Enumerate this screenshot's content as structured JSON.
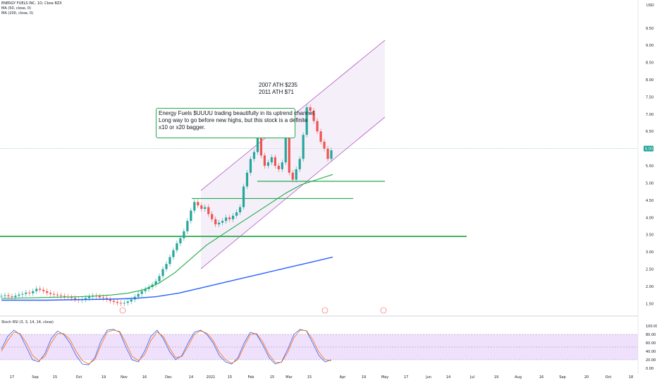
{
  "header": {
    "symbol_line": "ENERGY FUELS INC, 1D, Cboe BZX",
    "indicator_1": "MA (50, close, 0)",
    "indicator_2": "MA (200, close, 0)",
    "currency": "USD",
    "last_price_label": "6.00"
  },
  "annotations": {
    "ath_2007": "2007 ATH $235",
    "ath_2011": "2011 ATH $71",
    "note_line1": "Energy Fuels $UUUU trading beautifully in its uptrend channel.",
    "note_line2": "Long way to go before new highs, but this stock is a definite",
    "note_line3": "x10 or x20 bagger."
  },
  "oscillator": {
    "title": "Stoch RSI (3, 3, 14, 14, close)",
    "axis_ticks": [
      "100.00",
      "80.00",
      "60.00",
      "40.00",
      "20.00",
      "0.00"
    ]
  },
  "colors": {
    "up": "#26a69a",
    "down": "#ef5350",
    "ma50": "#22ab4a",
    "ma200": "#2962ff",
    "channel": "#9c27b0",
    "hline": "#22ab4a"
  },
  "chart_data": {
    "type": "candlestick",
    "title": "ENERGY FUELS INC, 1D, Cboe BZX",
    "y_ticks": [
      "9.50",
      "9.00",
      "8.50",
      "8.00",
      "7.50",
      "7.00",
      "6.50",
      "6.00",
      "5.50",
      "5.00",
      "4.50",
      "4.00",
      "3.50",
      "3.00",
      "2.50",
      "2.00",
      "1.50"
    ],
    "x_ticks": [
      "17",
      "Sep",
      "15",
      "Oct",
      "19",
      "Nov",
      "16",
      "Dec",
      "14",
      "2021",
      "15",
      "Feb",
      "15",
      "Mar",
      "15",
      "Apr",
      "19",
      "May",
      "17",
      "Jun",
      "14",
      "Jul",
      "19",
      "Aug",
      "16",
      "Sep",
      "20",
      "Oct",
      "18"
    ],
    "ylim": [
      1.2,
      9.7
    ],
    "price_candles": [
      1.72,
      1.74,
      1.71,
      1.69,
      1.73,
      1.76,
      1.78,
      1.82,
      1.8,
      1.86,
      1.93,
      1.9,
      1.86,
      1.81,
      1.78,
      1.76,
      1.74,
      1.72,
      1.7,
      1.68,
      1.66,
      1.63,
      1.6,
      1.62,
      1.66,
      1.7,
      1.73,
      1.71,
      1.68,
      1.66,
      1.62,
      1.58,
      1.55,
      1.52,
      1.5,
      1.52,
      1.56,
      1.62,
      1.7,
      1.78,
      1.86,
      1.92,
      1.98,
      2.05,
      2.15,
      2.3,
      2.5,
      2.65,
      2.85,
      3.05,
      3.25,
      3.4,
      3.6,
      3.9,
      4.2,
      4.45,
      4.35,
      4.25,
      4.3,
      4.1,
      3.95,
      3.8,
      3.85,
      3.9,
      4.0,
      3.95,
      4.05,
      4.15,
      4.3,
      4.9,
      5.3,
      5.7,
      5.9,
      6.3,
      5.8,
      5.5,
      5.6,
      5.75,
      5.5,
      5.4,
      5.6,
      6.4,
      5.3,
      5.1,
      5.4,
      5.7,
      6.4,
      7.2,
      7.1,
      6.8,
      6.5,
      6.2,
      6.0,
      5.7,
      5.95
    ],
    "series": [
      {
        "name": "MA (50, close, 0)",
        "points": [
          1.65,
          1.66,
          1.67,
          1.68,
          1.69,
          1.7,
          1.72,
          1.75,
          1.8,
          1.9,
          2.1,
          2.4,
          2.8,
          3.2,
          3.5,
          3.8,
          4.1,
          4.4,
          4.7,
          4.95,
          5.1,
          5.25
        ]
      },
      {
        "name": "MA (200, close, 0)",
        "points": [
          1.6,
          1.6,
          1.6,
          1.61,
          1.62,
          1.63,
          1.65,
          1.7,
          1.8,
          1.95,
          2.1,
          2.25,
          2.4,
          2.55,
          2.7,
          2.85
        ]
      }
    ],
    "horizontal_levels": [
      5.05,
      4.55,
      3.45
    ],
    "stoch_k": [
      45,
      75,
      90,
      80,
      50,
      20,
      15,
      35,
      70,
      88,
      80,
      60,
      30,
      10,
      8,
      25,
      65,
      90,
      92,
      85,
      50,
      20,
      15,
      40,
      75,
      90,
      70,
      40,
      20,
      30,
      60,
      85,
      90,
      80,
      60,
      30,
      15,
      10,
      25,
      60,
      85,
      80,
      55,
      25,
      10,
      15,
      45,
      80,
      92,
      88,
      60,
      30,
      15,
      20
    ],
    "stoch_d": [
      40,
      65,
      85,
      82,
      60,
      30,
      18,
      28,
      60,
      82,
      82,
      68,
      40,
      18,
      10,
      20,
      55,
      85,
      90,
      87,
      60,
      28,
      18,
      32,
      65,
      86,
      75,
      48,
      25,
      28,
      52,
      80,
      88,
      83,
      66,
      38,
      20,
      12,
      20,
      52,
      80,
      82,
      62,
      32,
      14,
      14,
      38,
      72,
      90,
      89,
      68,
      38,
      20,
      18
    ]
  }
}
